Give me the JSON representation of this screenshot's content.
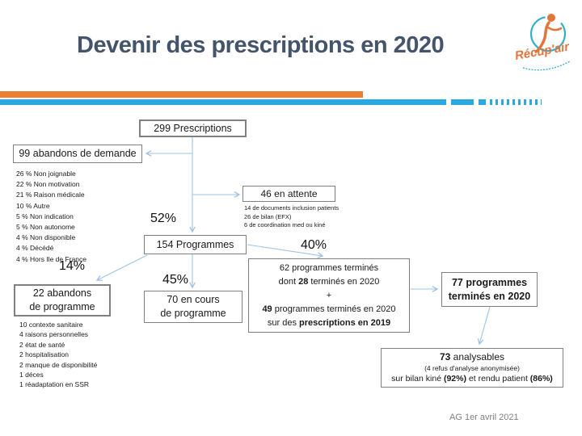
{
  "slide": {
    "title": "Devenir des prescriptions en 2020",
    "footer": "AG 1er avril 2021",
    "logo_text": "Récup'air"
  },
  "colors": {
    "title": "#44546A",
    "accent_orange": "#ED7D31",
    "accent_blue": "#29A9DF",
    "connector": "#9DC3E6",
    "box_border": "#808080"
  },
  "diagram": {
    "prescriptions_box": "299 Prescriptions",
    "abandons_demande_box": "99 abandons de demande",
    "abandons_demande_list": [
      "26 % Non joignable",
      "22 % Non motivation",
      "21 % Raison médicale",
      "10 % Autre",
      "5 % Non indication",
      "5 % Non autonome",
      "4 % Non disponible",
      "4 % Décédé",
      "4 % Hors Ile de France"
    ],
    "attente_box": "46 en attente",
    "attente_list": [
      "14 de documents inclusion patients",
      "26 de bilan (EFX)",
      "6 de coordination med ou kiné"
    ],
    "labels": {
      "pct_52": "52%",
      "pct_40": "40%",
      "pct_14": "14%",
      "pct_45": "45%"
    },
    "programmes_box": "154 Programmes",
    "abandons_programme_box_line1": "22 abandons",
    "abandons_programme_box_line2": "de programme",
    "abandons_programme_list": [
      "10 contexte sanitaire",
      "4 raisons personnelles",
      "2 état de santé",
      "2 hospitalisation",
      "2 manque de disponibilité",
      "1 déces",
      "1 réadaptation en SSR"
    ],
    "encours_box_line1": "70 en cours",
    "encours_box_line2": "de programme",
    "termines62_box": {
      "line1": "62 programmes terminés",
      "line2_pre": "dont ",
      "line2_bold": "28",
      "line2_post": " terminés en 2020",
      "line3": "+",
      "line4_bold": "49",
      "line4_post": " programmes terminés en 2020",
      "line5_pre": "sur des ",
      "line5_bold": "prescriptions en 2019"
    },
    "termines77_box_line1": "77 programmes",
    "termines77_box_line2": "terminés en 2020",
    "analysables_box": {
      "line1_bold": "73",
      "line1_post": " analysables",
      "line2": "(4 refus d'analyse anonymisée)",
      "line3_pre": "sur bilan kiné ",
      "line3_bold1": "(92%)",
      "line3_mid": " et rendu patient ",
      "line3_bold2": "(86%)"
    }
  }
}
